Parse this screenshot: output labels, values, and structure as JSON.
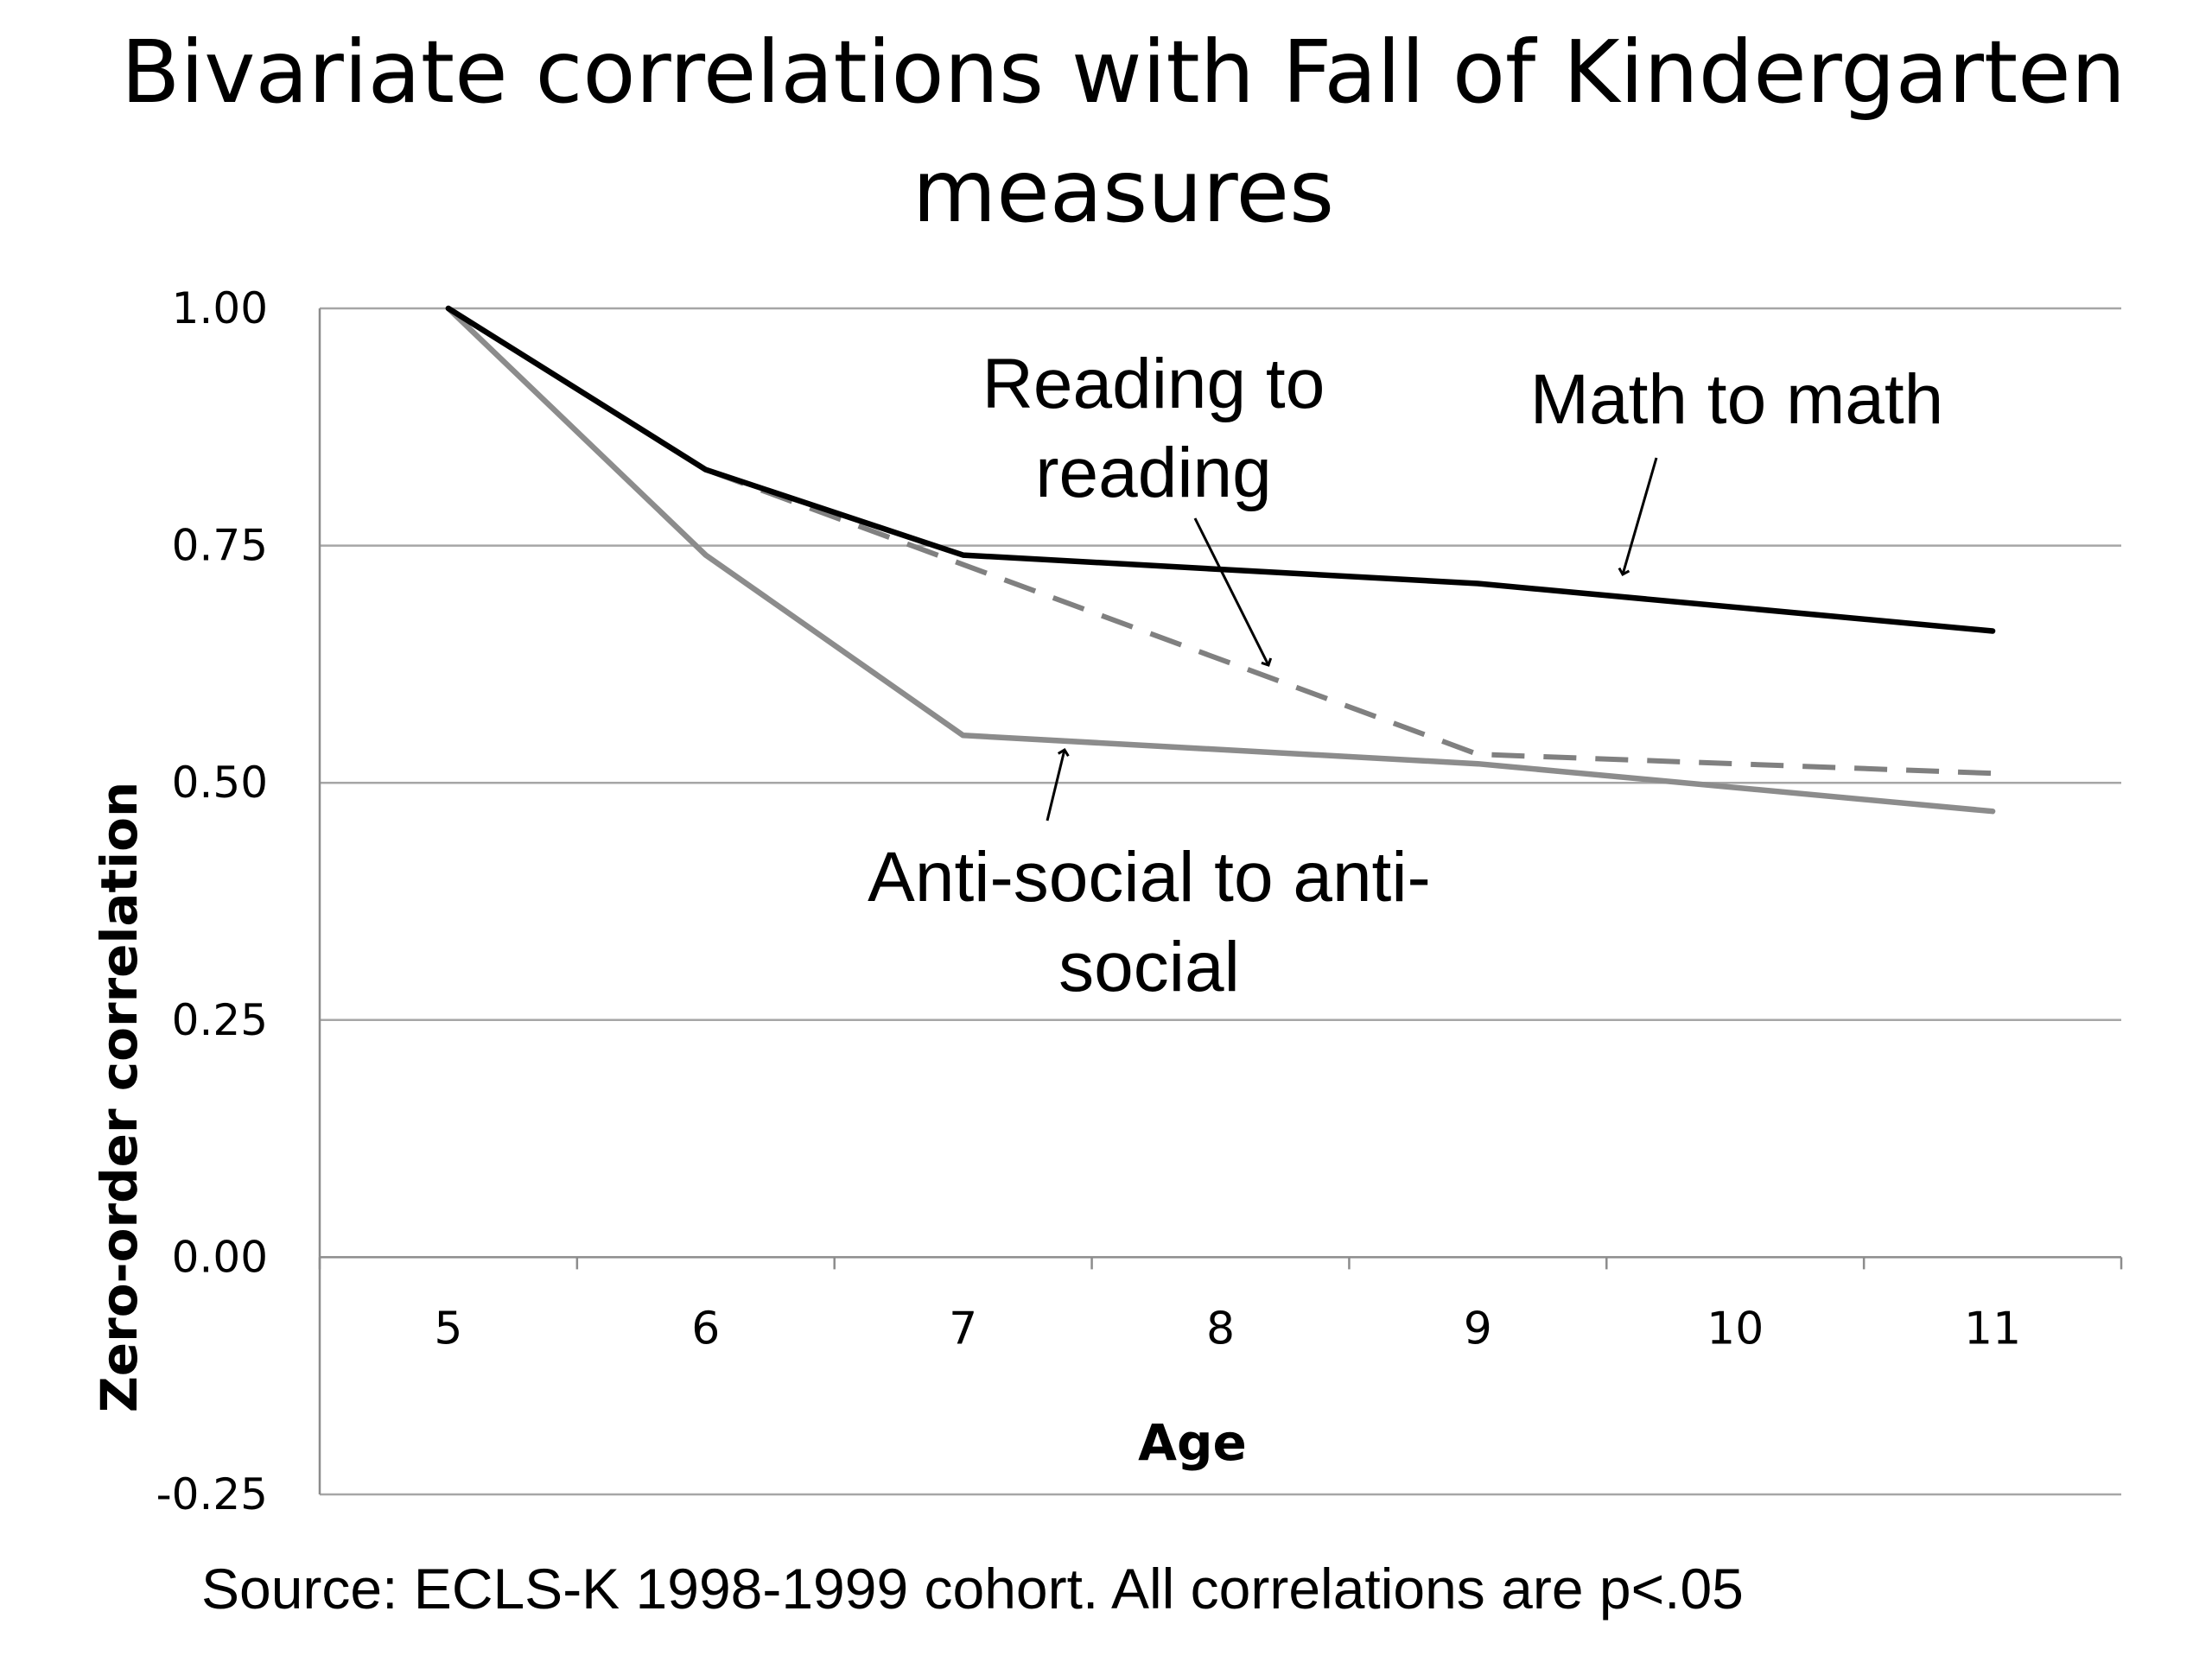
{
  "chart_data": {
    "type": "line",
    "title_lines": [
      "Bivariate correlations with Fall of Kindergarten",
      "measures"
    ],
    "xlabel": "Age",
    "ylabel": "Zero-order correlation",
    "x": [
      5,
      6,
      7,
      8,
      9,
      10,
      11
    ],
    "x_tick_labels": [
      "5",
      "6",
      "7",
      "8",
      "9",
      "10",
      "11"
    ],
    "ylim": [
      -0.25,
      1.0
    ],
    "y_ticks": [
      1.0,
      0.75,
      0.5,
      0.25,
      0.0,
      -0.25
    ],
    "y_tick_labels": [
      "1.00",
      "0.75",
      "0.50",
      "0.25",
      "0.00",
      "-0.25"
    ],
    "grid": "horizontal",
    "series": [
      {
        "name": "Math to math",
        "x": [
          5,
          6,
          7,
          9,
          11
        ],
        "values": [
          1.0,
          0.83,
          0.74,
          0.71,
          0.66
        ],
        "color": "#000000",
        "style": "solid"
      },
      {
        "name": "Reading to reading",
        "x": [
          5,
          6,
          9,
          11
        ],
        "values": [
          1.0,
          0.83,
          0.53,
          0.51
        ],
        "color": "#808080",
        "style": "dashed"
      },
      {
        "name": "Anti-social to anti-social",
        "x": [
          5,
          6,
          7,
          9,
          11
        ],
        "values": [
          1.0,
          0.74,
          0.55,
          0.52,
          0.47
        ],
        "color": "#8c8c8c",
        "style": "solid"
      }
    ],
    "annotations": [
      {
        "lines": [
          "Reading to",
          "reading"
        ],
        "series": "Reading to reading"
      },
      {
        "lines": [
          "Math to math"
        ],
        "series": "Math to math"
      },
      {
        "lines": [
          "Anti-social to anti-",
          "social"
        ],
        "series": "Anti-social to anti-social"
      }
    ]
  },
  "source_note": "Source: ECLS-K 1998-1999 cohort. All correlations are p<.05"
}
